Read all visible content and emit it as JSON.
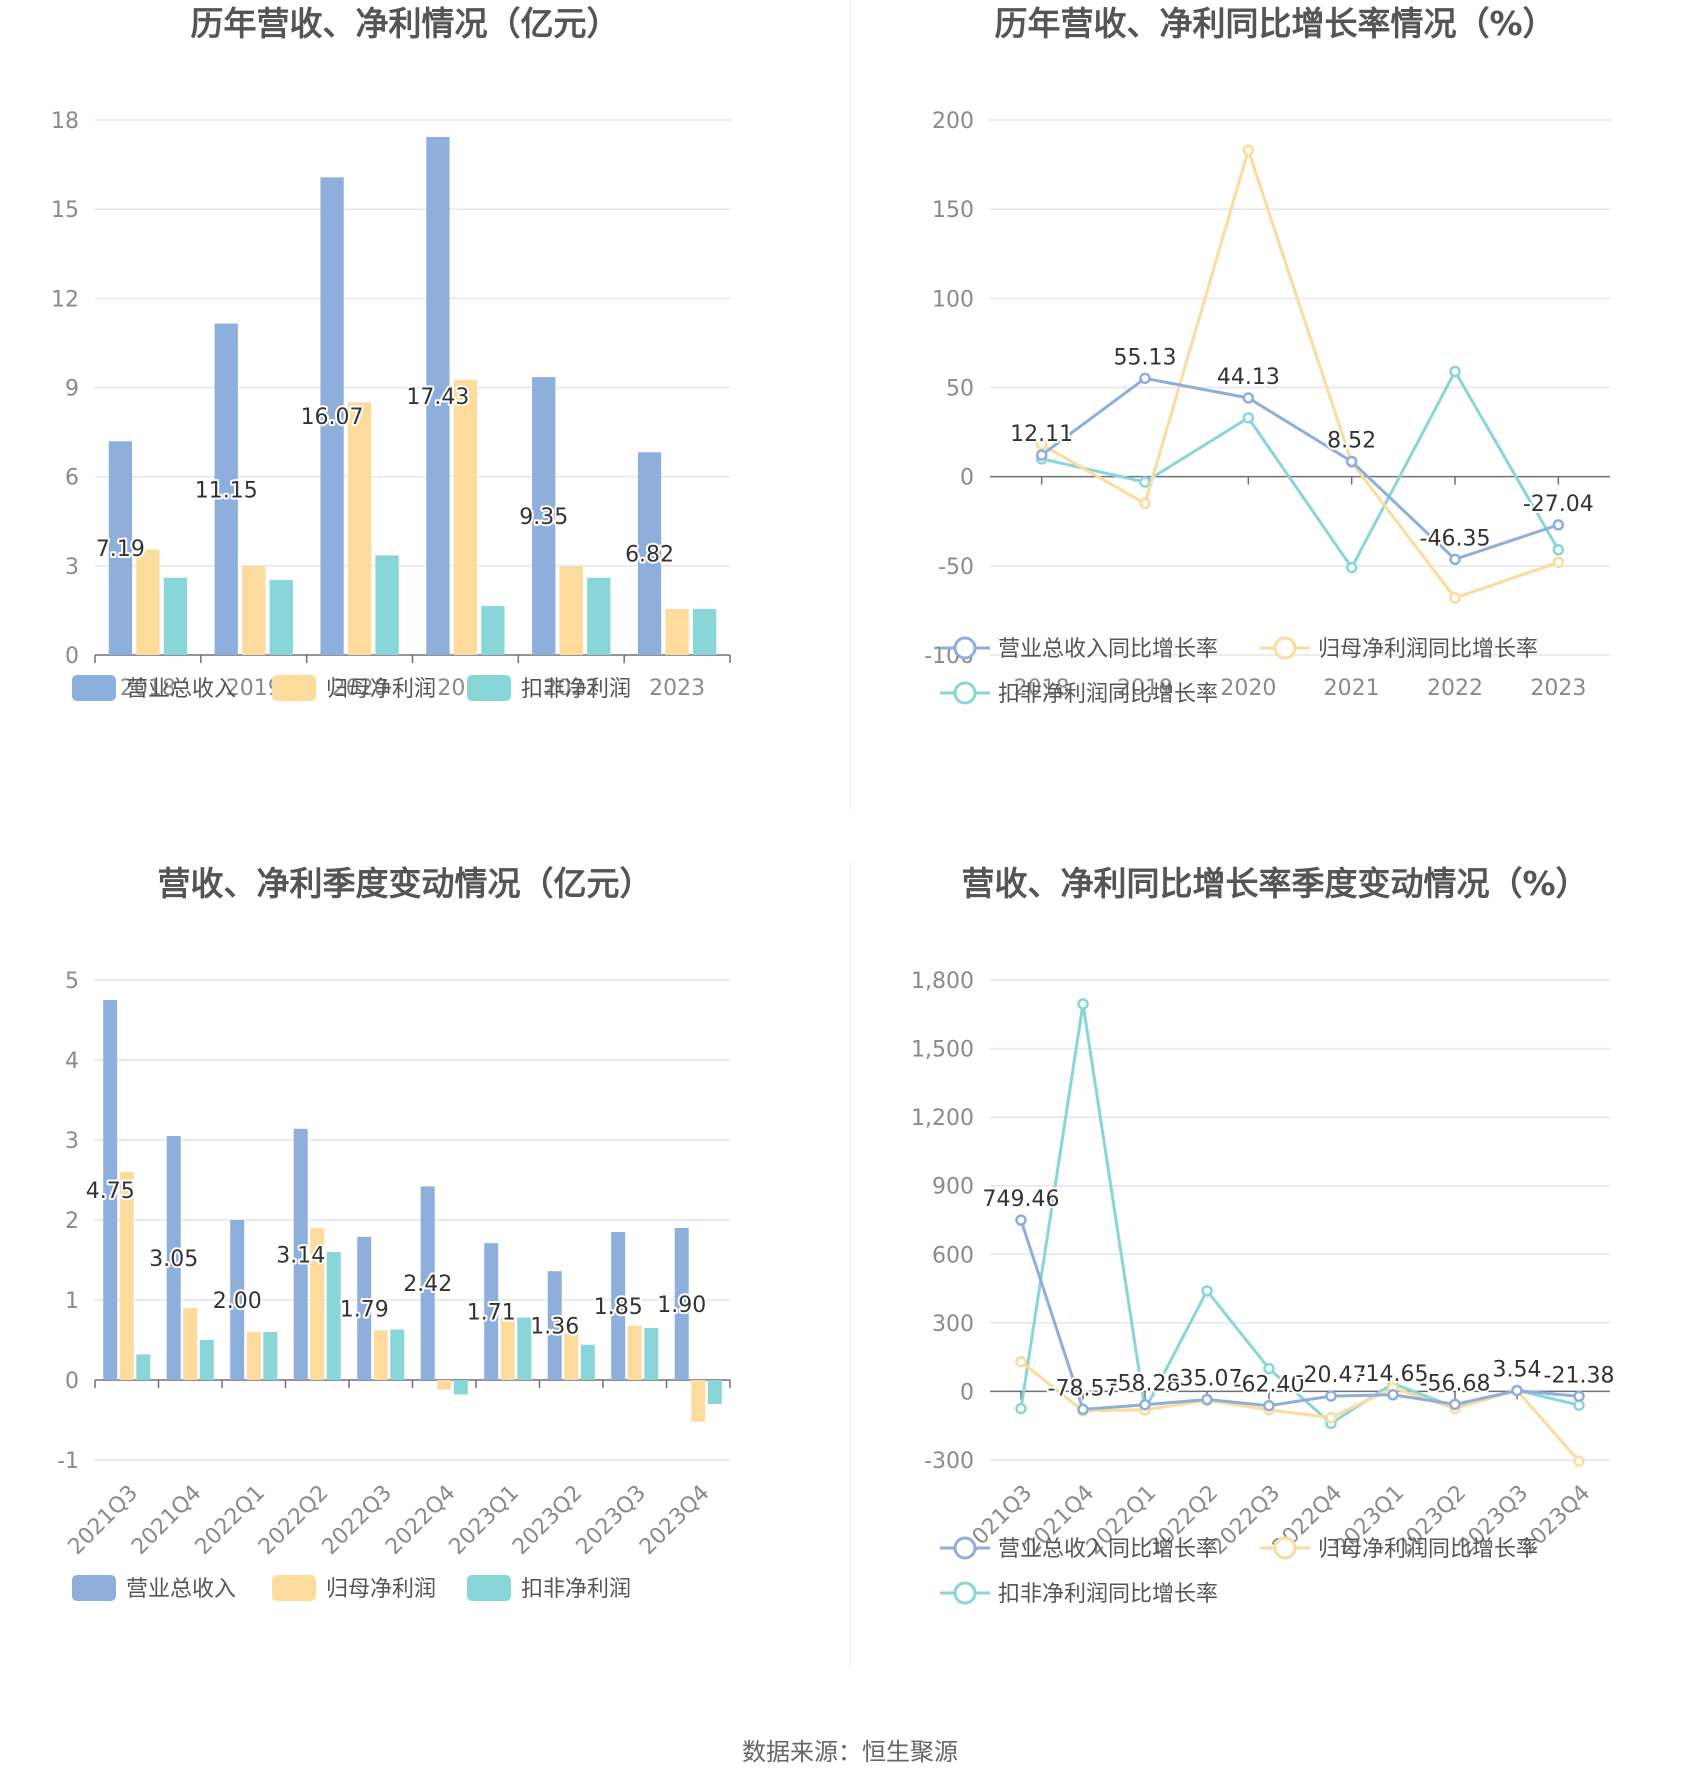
{
  "source_label": "数据来源：",
  "source_name": "恒生聚源",
  "colors": {
    "revenue": "#8eaedc",
    "net_profit": "#fddb9c",
    "deducted": "#88d6d7"
  },
  "chart_data": [
    {
      "id": "annual",
      "type": "bar",
      "title": "历年营收、净利情况（亿元）",
      "categories": [
        "2018",
        "2019",
        "2020",
        "2021",
        "2022",
        "2023"
      ],
      "ylim": [
        0,
        18
      ],
      "yticks": [
        0,
        3,
        6,
        9,
        12,
        15,
        18
      ],
      "grid": true,
      "legend_position": "bottom",
      "series": [
        {
          "name": "营业总收入",
          "color": "#8eaedc",
          "values": [
            7.19,
            11.15,
            16.07,
            17.43,
            9.35,
            6.82
          ],
          "labels": [
            "7.19",
            "11.15",
            "16.07",
            "17.43",
            "9.35",
            "6.82"
          ]
        },
        {
          "name": "归母净利润",
          "color": "#fddb9c",
          "values": [
            3.55,
            3.0,
            8.5,
            9.25,
            2.98,
            1.55
          ]
        },
        {
          "name": "扣非净利润",
          "color": "#88d6d7",
          "values": [
            2.6,
            2.52,
            3.35,
            1.65,
            2.6,
            1.55
          ]
        }
      ]
    },
    {
      "id": "annual-growth",
      "type": "line",
      "title": "历年营收、净利同比增长率情况（%）",
      "categories": [
        "2018",
        "2019",
        "2020",
        "2021",
        "2022",
        "2023"
      ],
      "ylim": [
        -100,
        200
      ],
      "yticks": [
        -100,
        -50,
        0,
        50,
        100,
        150,
        200
      ],
      "grid": true,
      "legend_position": "bottom",
      "series": [
        {
          "name": "营业总收入同比增长率",
          "color": "#8eaedc",
          "values": [
            12.11,
            55.13,
            44.13,
            8.52,
            -46.35,
            -27.04
          ],
          "labels": [
            "12.11",
            "55.13",
            "44.13",
            "8.52",
            "-46.35",
            "-27.04"
          ]
        },
        {
          "name": "归母净利润同比增长率",
          "color": "#fddb9c",
          "values": [
            18,
            -15,
            183,
            8,
            -68,
            -48
          ]
        },
        {
          "name": "扣非净利润同比增长率",
          "color": "#88d6d7",
          "values": [
            10,
            -3,
            33,
            -51,
            59,
            -41
          ]
        }
      ]
    },
    {
      "id": "quarterly",
      "type": "bar",
      "title": "营收、净利季度变动情况（亿元）",
      "categories": [
        "2021Q3",
        "2021Q4",
        "2022Q1",
        "2022Q2",
        "2022Q3",
        "2022Q4",
        "2023Q1",
        "2023Q2",
        "2023Q3",
        "2023Q4"
      ],
      "ylim": [
        -1,
        5
      ],
      "yticks": [
        -1,
        0,
        1,
        2,
        3,
        4,
        5
      ],
      "grid": true,
      "legend_position": "bottom",
      "series": [
        {
          "name": "营业总收入",
          "color": "#8eaedc",
          "values": [
            4.75,
            3.05,
            2.0,
            3.14,
            1.79,
            2.42,
            1.71,
            1.36,
            1.85,
            1.9
          ],
          "labels": [
            "4.75",
            "3.05",
            "2.00",
            "3.14",
            "1.79",
            "2.42",
            "1.71",
            "1.36",
            "1.85",
            "1.90"
          ]
        },
        {
          "name": "归母净利润",
          "color": "#fddb9c",
          "values": [
            2.6,
            0.9,
            0.6,
            1.9,
            0.62,
            -0.12,
            0.78,
            0.58,
            0.68,
            -0.52
          ]
        },
        {
          "name": "扣非净利润",
          "color": "#88d6d7",
          "values": [
            0.32,
            0.5,
            0.6,
            1.6,
            0.63,
            -0.18,
            0.78,
            0.44,
            0.65,
            -0.3
          ]
        }
      ]
    },
    {
      "id": "quarterly-growth",
      "type": "line",
      "title": "营收、净利同比增长率季度变动情况（%）",
      "categories": [
        "2021Q3",
        "2021Q4",
        "2022Q1",
        "2022Q2",
        "2022Q3",
        "2022Q4",
        "2023Q1",
        "2023Q2",
        "2023Q3",
        "2023Q4"
      ],
      "ylim": [
        -300,
        1800
      ],
      "yticks": [
        -300,
        0,
        300,
        600,
        900,
        1200,
        1500,
        1800
      ],
      "ytick_labels": [
        "-300",
        "0",
        "300",
        "600",
        "900",
        "1,200",
        "1,500",
        "1,800"
      ],
      "grid": true,
      "legend_position": "bottom",
      "series": [
        {
          "name": "营业总收入同比增长率",
          "color": "#8eaedc",
          "values": [
            749.46,
            -78.57,
            -58.28,
            -35.07,
            -62.4,
            -20.47,
            -14.65,
            -56.68,
            3.54,
            -21.38
          ],
          "labels": [
            "749.46",
            "-78.57",
            "-58.28",
            "-35.07",
            "-62.40",
            "-20.47",
            "-14.65",
            "-56.68",
            "3.54",
            "-21.38"
          ]
        },
        {
          "name": "归母净利润同比增长率",
          "color": "#fddb9c",
          "values": [
            130,
            -85,
            -80,
            -40,
            -80,
            -115,
            15,
            -75,
            5,
            -305
          ]
        },
        {
          "name": "扣非净利润同比增长率",
          "color": "#88d6d7",
          "values": [
            -75,
            1695,
            -80,
            440,
            100,
            -140,
            35,
            -70,
            5,
            -60
          ]
        }
      ]
    }
  ]
}
